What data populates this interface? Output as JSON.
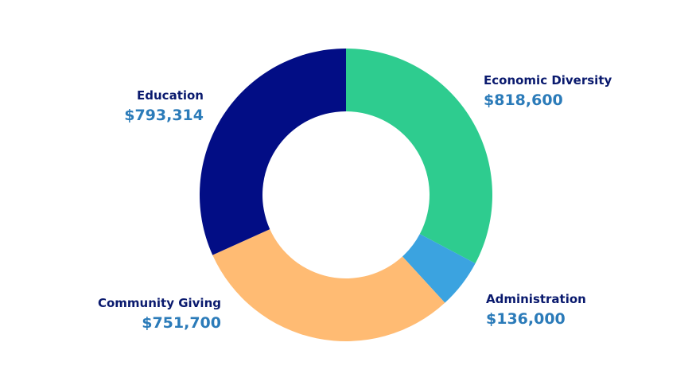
{
  "chart_data": {
    "type": "donut",
    "categories": [
      "Economic Diversity",
      "Administration",
      "Community Giving",
      "Education"
    ],
    "values": [
      818600,
      136000,
      751700,
      793314
    ],
    "value_labels": [
      "$818,600",
      "$136,000",
      "$751,700",
      "$793,314"
    ],
    "colors": [
      "#2ecc8f",
      "#3ba3e0",
      "#ffbb73",
      "#020d85"
    ]
  }
}
